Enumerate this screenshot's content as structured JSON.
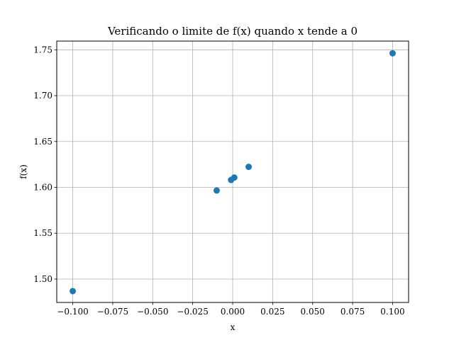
{
  "chart_data": {
    "type": "scatter",
    "title": "Verificando o limite de f(x) quando x tende a 0",
    "xlabel": "x",
    "ylabel": "f(x)",
    "xlim": [
      -0.11,
      0.11
    ],
    "ylim": [
      1.4745,
      1.7595
    ],
    "x_ticks": [
      -0.1,
      -0.075,
      -0.05,
      -0.025,
      0.0,
      0.025,
      0.05,
      0.075,
      0.1
    ],
    "x_tick_labels": [
      "−0.100",
      "−0.075",
      "−0.050",
      "−0.025",
      "0.000",
      "0.025",
      "0.050",
      "0.075",
      "0.100"
    ],
    "y_ticks": [
      1.5,
      1.55,
      1.6,
      1.65,
      1.7,
      1.75
    ],
    "y_tick_labels": [
      "1.50",
      "1.55",
      "1.60",
      "1.65",
      "1.70",
      "1.75"
    ],
    "grid": true,
    "marker_color": "#1f77b4",
    "x": [
      -0.1,
      -0.01,
      -0.001,
      0.001,
      0.01,
      0.1
    ],
    "y": [
      1.4869,
      1.5966,
      1.6081,
      1.6107,
      1.6224,
      1.7462
    ]
  }
}
